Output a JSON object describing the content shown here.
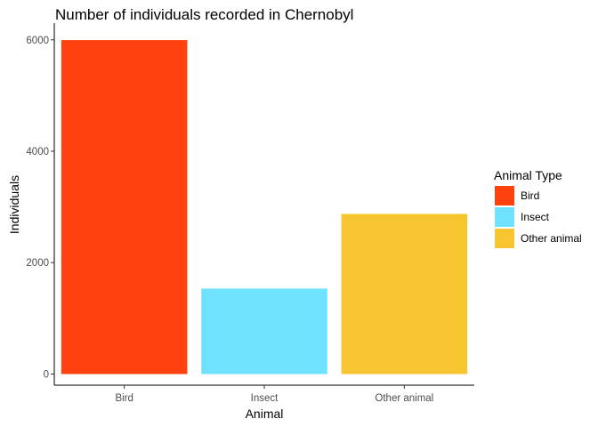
{
  "chart_data": {
    "type": "bar",
    "title": "Number of individuals recorded in Chernobyl",
    "xlabel": "Animal",
    "ylabel": "Individuals",
    "categories": [
      "Bird",
      "Insect",
      "Other animal"
    ],
    "values": [
      5995,
      1535,
      2875
    ],
    "colors": [
      "#FF410D",
      "#6EE2FF",
      "#F7C530"
    ],
    "ylim": [
      -200,
      6300
    ],
    "yticks": [
      0,
      2000,
      4000,
      6000
    ],
    "grid": false,
    "legend": {
      "title": "Animal Type",
      "placement": "right",
      "entries": [
        "Bird",
        "Insect",
        "Other animal"
      ]
    }
  }
}
